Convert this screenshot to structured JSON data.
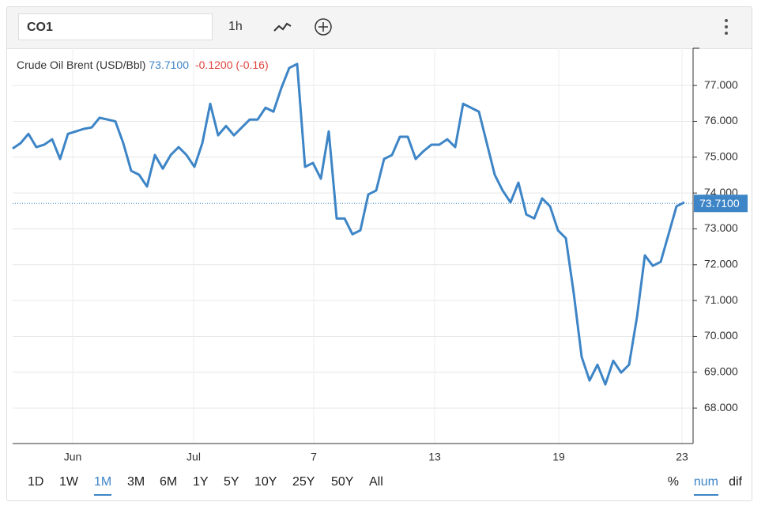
{
  "toolbar": {
    "symbol": "CO1",
    "interval": "1h"
  },
  "chart_data": {
    "type": "line",
    "legend": {
      "name": "Crude Oil Brent (USD/Bbl)",
      "last": {
        "value": 73.71,
        "label": "73.7100"
      },
      "change": "-0.1200 (-0.16)"
    },
    "x": [
      0,
      1,
      2,
      3,
      4,
      5,
      6,
      7,
      8,
      9,
      10,
      11,
      12,
      13,
      14,
      15,
      16,
      17,
      18,
      19,
      20,
      21,
      22,
      23,
      24,
      25,
      26,
      27,
      28,
      29,
      30,
      31,
      32,
      33,
      34,
      35,
      36,
      37,
      38,
      39,
      40,
      41,
      42,
      43,
      44,
      45,
      46,
      47,
      48,
      49,
      50,
      51,
      52,
      53,
      54,
      55,
      56,
      57,
      58,
      59,
      60,
      61,
      62,
      63,
      64,
      65,
      66,
      67,
      68,
      69,
      70,
      71,
      72,
      73,
      74,
      75,
      76,
      77,
      78,
      79,
      80,
      81,
      82,
      83,
      84,
      85
    ],
    "series": [
      {
        "name": "Crude Oil Brent (USD/Bbl)",
        "color": "#3d85c6",
        "values": [
          75.24,
          75.39,
          75.65,
          75.28,
          75.35,
          75.5,
          74.95,
          75.65,
          75.72,
          75.79,
          75.83,
          76.1,
          76.05,
          76.0,
          75.39,
          74.62,
          74.51,
          74.18,
          75.06,
          74.68,
          75.06,
          75.28,
          75.06,
          74.73,
          75.39,
          76.49,
          75.61,
          75.87,
          75.61,
          75.83,
          76.05,
          76.05,
          76.38,
          76.27,
          76.93,
          77.49,
          77.6,
          74.73,
          74.84,
          74.4,
          75.72,
          73.29,
          73.29,
          72.85,
          72.96,
          73.96,
          74.07,
          74.95,
          75.06,
          75.57,
          75.57,
          74.95,
          75.17,
          75.35,
          75.35,
          75.5,
          75.28,
          76.49,
          76.38,
          76.27,
          75.39,
          74.51,
          74.07,
          73.74,
          74.29,
          73.4,
          73.29,
          73.85,
          73.63,
          72.96,
          72.74,
          71.2,
          69.43,
          68.77,
          69.21,
          68.66,
          69.32,
          68.99,
          69.21,
          70.54,
          72.26,
          71.97,
          72.08,
          72.85,
          73.63,
          73.74
        ]
      }
    ],
    "xlim": [
      0,
      86.1
    ],
    "xticks": [
      {
        "value": 7.6,
        "label": "Jun"
      },
      {
        "value": 22.9,
        "label": "Jul"
      },
      {
        "value": 38.1,
        "label": "7"
      },
      {
        "value": 53.4,
        "label": "13"
      },
      {
        "value": 69.1,
        "label": "19"
      },
      {
        "value": 84.7,
        "label": "23"
      }
    ],
    "ylim": [
      67.01,
      78.04
    ],
    "yticks": [
      {
        "value": 68,
        "label": "68.000"
      },
      {
        "value": 69,
        "label": "69.000"
      },
      {
        "value": 70,
        "label": "70.000"
      },
      {
        "value": 71,
        "label": "71.000"
      },
      {
        "value": 72,
        "label": "72.000"
      },
      {
        "value": 73,
        "label": "73.000"
      },
      {
        "value": 74,
        "label": "74.000"
      },
      {
        "value": 75,
        "label": "75.000"
      },
      {
        "value": 76,
        "label": "76.000"
      },
      {
        "value": 77,
        "label": "77.000"
      }
    ],
    "grid": true
  },
  "ranges": [
    "1D",
    "1W",
    "1M",
    "3M",
    "6M",
    "1Y",
    "5Y",
    "10Y",
    "25Y",
    "50Y",
    "All"
  ],
  "active_range": 2,
  "modes": [
    "%",
    "num",
    "dif"
  ],
  "active_mode": 1
}
